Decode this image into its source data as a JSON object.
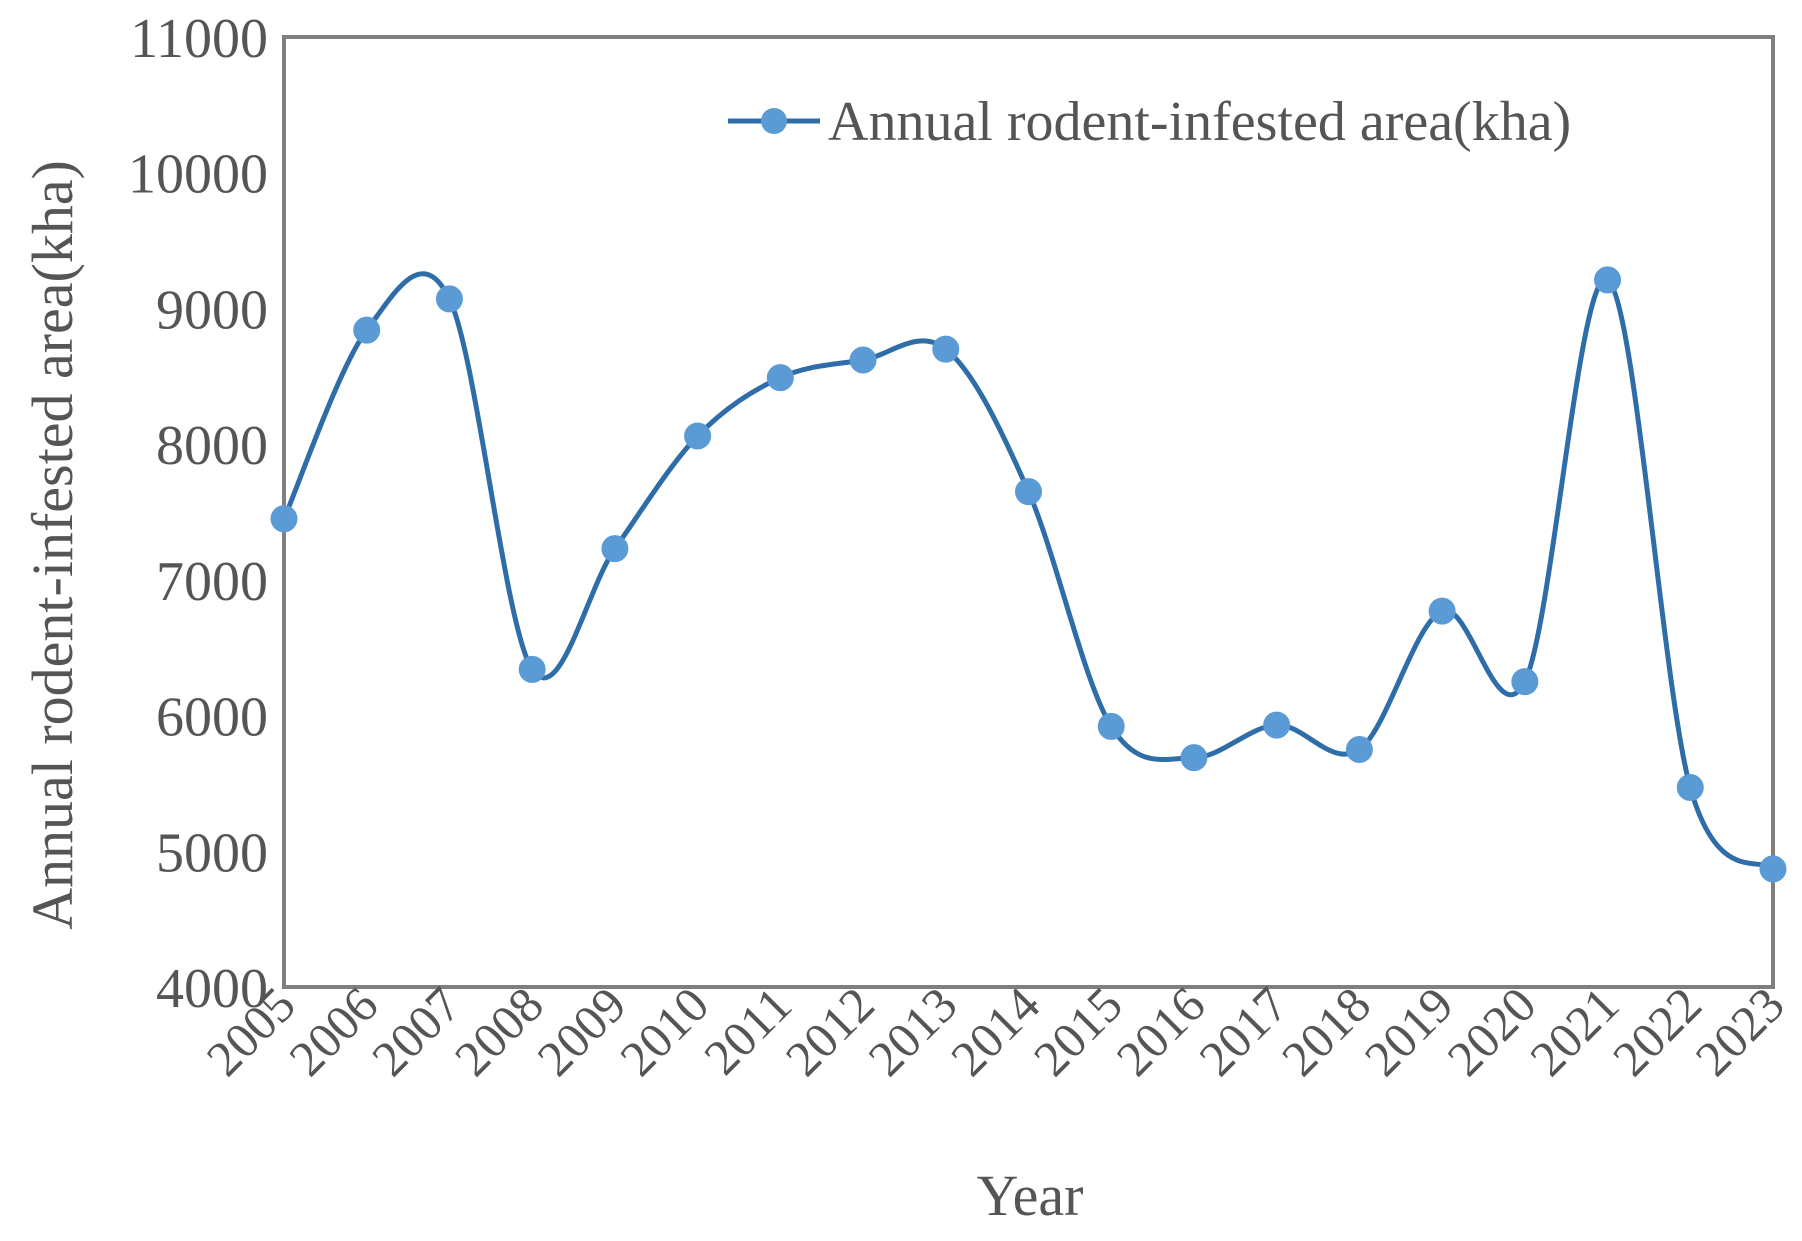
{
  "chart_data": {
    "type": "line",
    "smooth": true,
    "xlabel": "Year",
    "ylabel": "Annual rodent-infested area(kha)",
    "ylim": [
      4000,
      11000
    ],
    "yticks": [
      4000,
      5000,
      6000,
      7000,
      8000,
      9000,
      10000,
      11000
    ],
    "grid": false,
    "legend_position": "top-right",
    "categories": [
      "2005",
      "2006",
      "2007",
      "2008",
      "2009",
      "2010",
      "2011",
      "2012",
      "2013",
      "2014",
      "2015",
      "2016",
      "2017",
      "2018",
      "2019",
      "2020",
      "2021",
      "2022",
      "2023"
    ],
    "series": [
      {
        "name": "Annual rodent-infested area(kha)",
        "color": "#2E6DA8",
        "marker_color": "#5B9BD5",
        "values": [
          7450,
          8840,
          9070,
          6340,
          7230,
          8060,
          8490,
          8620,
          8700,
          7650,
          5920,
          5690,
          5930,
          5750,
          6770,
          6250,
          9210,
          5470,
          4870
        ]
      }
    ]
  }
}
